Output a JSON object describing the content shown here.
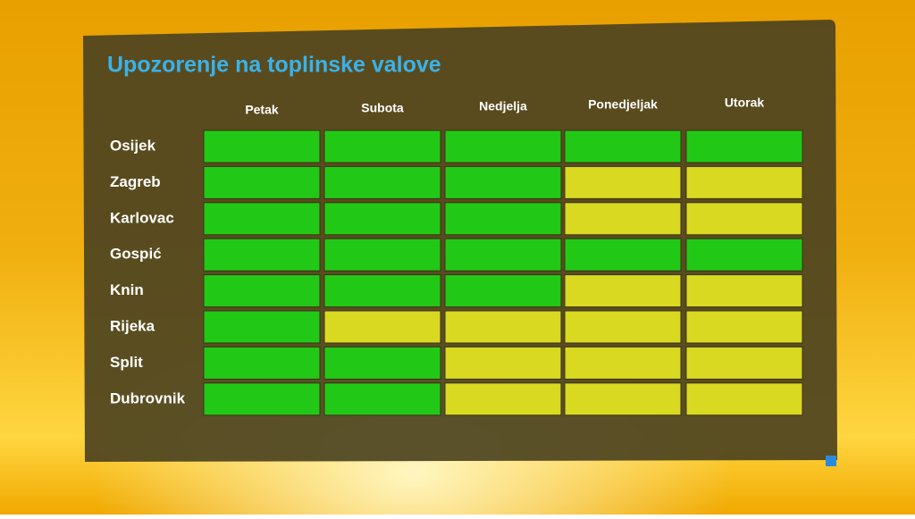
{
  "header": {
    "title": "Upozorenje na toplinske valove"
  },
  "table": {
    "columns": [
      "Petak",
      "Subota",
      "Nedjelja",
      "Ponedjeljak",
      "Utorak"
    ],
    "rows": [
      {
        "label": "Osijek",
        "cells": [
          "#21c916",
          "#21c916",
          "#21c916",
          "#21c916",
          "#21c916"
        ]
      },
      {
        "label": "Zagreb",
        "cells": [
          "#21c916",
          "#21c916",
          "#21c916",
          "#d9d921",
          "#d9d921"
        ]
      },
      {
        "label": "Karlovac",
        "cells": [
          "#21c916",
          "#21c916",
          "#21c916",
          "#d9d921",
          "#d9d921"
        ]
      },
      {
        "label": "Gospić",
        "cells": [
          "#21c916",
          "#21c916",
          "#21c916",
          "#21c916",
          "#21c916"
        ]
      },
      {
        "label": "Knin",
        "cells": [
          "#21c916",
          "#21c916",
          "#21c916",
          "#d9d921",
          "#d9d921"
        ]
      },
      {
        "label": "Rijeka",
        "cells": [
          "#21c916",
          "#d9d921",
          "#d9d921",
          "#d9d921",
          "#d9d921"
        ]
      },
      {
        "label": "Split",
        "cells": [
          "#21c916",
          "#21c916",
          "#d9d921",
          "#d9d921",
          "#d9d921"
        ]
      },
      {
        "label": "Dubrovnik",
        "cells": [
          "#21c916",
          "#21c916",
          "#d9d921",
          "#d9d921",
          "#d9d921"
        ]
      }
    ]
  }
}
